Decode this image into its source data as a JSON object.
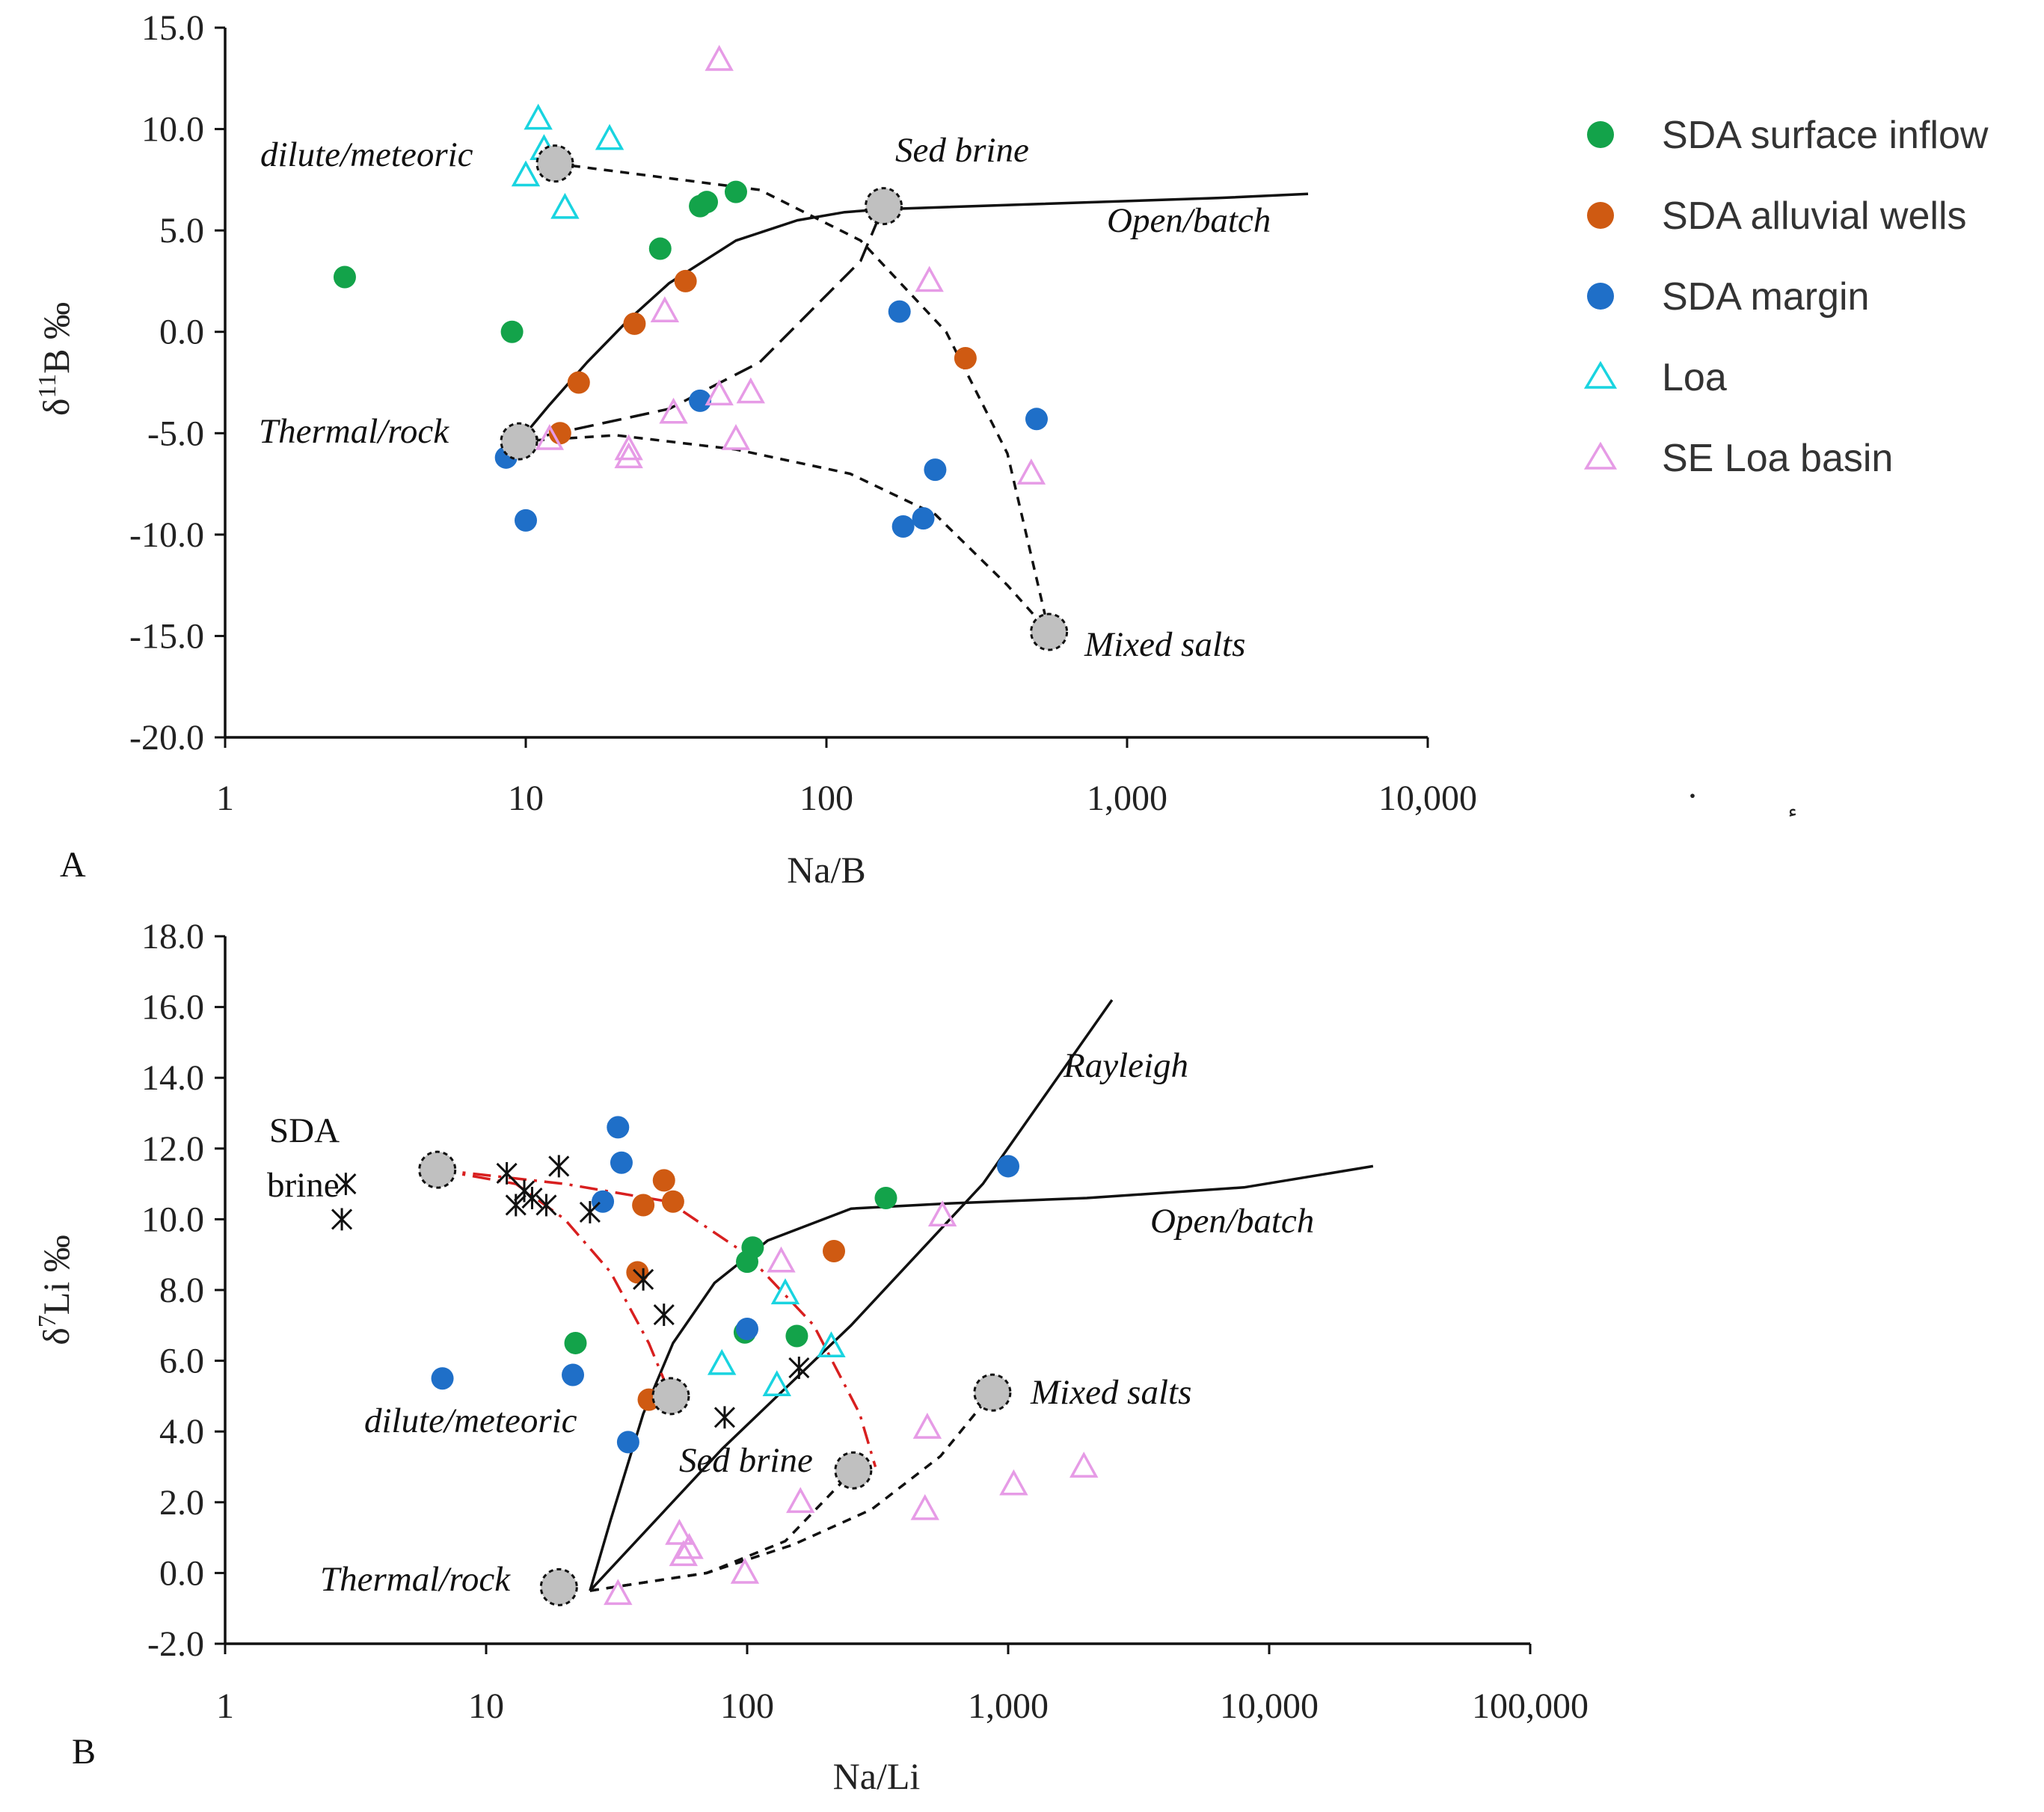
{
  "colors": {
    "surface_inflow": "#13a34a",
    "alluvial_wells": "#cf5a12",
    "margin": "#1f6fc8",
    "loa": "#19d4e0",
    "se_loa_basin": "#e69be6",
    "end_member_fill": "#c0c0c0",
    "red_dash": "#d81f1f"
  },
  "legend": {
    "items": [
      {
        "label": "SDA surface inflow",
        "series": "surface_inflow"
      },
      {
        "label": "SDA alluvial wells",
        "series": "alluvial_wells"
      },
      {
        "label": "SDA margin",
        "series": "margin"
      },
      {
        "label": "Loa",
        "series": "loa"
      },
      {
        "label": "SE  Loa basin",
        "series": "se_loa_basin"
      }
    ]
  },
  "chart_data": [
    {
      "panel": "A",
      "type": "scatter",
      "xscale": "log",
      "xlim": [
        1,
        10000
      ],
      "ylim": [
        -20,
        15
      ],
      "xticks": [
        "1",
        "10",
        "100",
        "1,000",
        "10,000"
      ],
      "yticks": [
        "-20.0",
        "-15.0",
        "-10.0",
        "-5.0",
        "0.0",
        "5.0",
        "10.0",
        "15.0"
      ],
      "xlabel": "Na/B",
      "ylabel_main": "δ",
      "ylabel_sup": "11",
      "ylabel_rest": "B ‰",
      "series": [
        {
          "key": "surface_inflow",
          "marker": "circle",
          "points": [
            [
              2.5,
              2.7
            ],
            [
              9,
              0
            ],
            [
              28,
              4.1
            ],
            [
              38,
              6.2
            ],
            [
              40,
              6.4
            ],
            [
              50,
              6.9
            ]
          ]
        },
        {
          "key": "alluvial_wells",
          "marker": "circle",
          "points": [
            [
              13,
              -5
            ],
            [
              15,
              -2.5
            ],
            [
              23,
              0.4
            ],
            [
              34,
              2.5
            ],
            [
              290,
              -1.3
            ]
          ]
        },
        {
          "key": "margin",
          "marker": "circle",
          "points": [
            [
              8.6,
              -6.2
            ],
            [
              10,
              -9.3
            ],
            [
              38,
              -3.4
            ],
            [
              175,
              1
            ],
            [
              180,
              -9.6
            ],
            [
              210,
              -9.2
            ],
            [
              230,
              -6.8
            ],
            [
              500,
              -4.3
            ]
          ]
        },
        {
          "key": "loa",
          "marker": "triangle",
          "points": [
            [
              10,
              7.7
            ],
            [
              11,
              10.5
            ],
            [
              11.5,
              9
            ],
            [
              13.5,
              6.1
            ],
            [
              19,
              9.5
            ]
          ]
        },
        {
          "key": "se_loa_basin",
          "marker": "triangle",
          "points": [
            [
              12,
              -5.3
            ],
            [
              22,
              -5.8
            ],
            [
              22,
              -6.2
            ],
            [
              29,
              1
            ],
            [
              31,
              -4
            ],
            [
              44,
              13.4
            ],
            [
              44,
              -3.1
            ],
            [
              50,
              -5.3
            ],
            [
              56,
              -3
            ],
            [
              220,
              2.5
            ],
            [
              480,
              -7
            ]
          ]
        }
      ],
      "end_members": [
        {
          "x": 12.5,
          "y": 8.3,
          "label": "dilute/meteoric"
        },
        {
          "x": 155,
          "y": 6.2,
          "label": "Sed brine"
        },
        {
          "x": 9.5,
          "y": -5.4,
          "label": "Thermal/rock"
        },
        {
          "x": 550,
          "y": -14.8,
          "label": "Mixed salts"
        }
      ],
      "curves": [
        {
          "style": "solid",
          "label": "Open/batch",
          "points": [
            [
              9.5,
              -5.4
            ],
            [
              12,
              -3.6
            ],
            [
              16,
              -1.5
            ],
            [
              22,
              0.6
            ],
            [
              30,
              2.4
            ],
            [
              50,
              4.5
            ],
            [
              80,
              5.5
            ],
            [
              115,
              5.9
            ],
            [
              155,
              6.05
            ],
            [
              500,
              6.3
            ],
            [
              2000,
              6.6
            ],
            [
              4000,
              6.8
            ]
          ]
        },
        {
          "style": "dashed-short",
          "points": [
            [
              12.5,
              8.3
            ],
            [
              60,
              7
            ],
            [
              130,
              4.5
            ],
            [
              250,
              0
            ],
            [
              400,
              -6
            ],
            [
              550,
              -14.8
            ]
          ]
        },
        {
          "style": "dashed-short",
          "points": [
            [
              9.5,
              -5.4
            ],
            [
              20,
              -5.1
            ],
            [
              50,
              -5.8
            ],
            [
              120,
              -7
            ],
            [
              230,
              -9
            ],
            [
              400,
              -12.5
            ],
            [
              550,
              -14.8
            ]
          ]
        },
        {
          "style": "dashed-long",
          "points": [
            [
              9.5,
              -5.4
            ],
            [
              30,
              -3.8
            ],
            [
              60,
              -1.5
            ],
            [
              130,
              3.5
            ],
            [
              155,
              6.2
            ]
          ]
        }
      ]
    },
    {
      "panel": "B",
      "type": "scatter",
      "xscale": "log",
      "xlim": [
        1,
        100000
      ],
      "ylim": [
        -2,
        18
      ],
      "xticks": [
        "1",
        "10",
        "100",
        "1,000",
        "10,000",
        "100,000"
      ],
      "yticks": [
        "-2.0",
        "0.0",
        "2.0",
        "4.0",
        "6.0",
        "8.0",
        "10.0",
        "12.0",
        "14.0",
        "16.0",
        "18.0"
      ],
      "xlabel": "Na/Li",
      "ylabel_main": "δ",
      "ylabel_sup": "7",
      "ylabel_rest": "Li ‰",
      "series": [
        {
          "key": "surface_inflow",
          "marker": "circle",
          "points": [
            [
              22,
              6.5
            ],
            [
              98,
              6.8
            ],
            [
              100,
              8.8
            ],
            [
              105,
              9.2
            ],
            [
              155,
              6.7
            ],
            [
              340,
              10.6
            ]
          ]
        },
        {
          "key": "alluvial_wells",
          "marker": "circle",
          "points": [
            [
              38,
              8.5
            ],
            [
              40,
              10.4
            ],
            [
              42,
              4.9
            ],
            [
              48,
              11.1
            ],
            [
              52,
              10.5
            ],
            [
              215,
              9.1
            ]
          ]
        },
        {
          "key": "margin",
          "marker": "circle",
          "points": [
            [
              6.8,
              5.5
            ],
            [
              21.5,
              5.6
            ],
            [
              28,
              10.5
            ],
            [
              32,
              12.6
            ],
            [
              33,
              11.6
            ],
            [
              35,
              3.7
            ],
            [
              100,
              6.9
            ],
            [
              1000,
              11.5
            ]
          ]
        },
        {
          "key": "loa",
          "marker": "triangle",
          "points": [
            [
              80,
              5.9
            ],
            [
              130,
              5.3
            ],
            [
              140,
              7.9
            ],
            [
              210,
              6.4
            ]
          ]
        },
        {
          "key": "se_loa_basin",
          "marker": "triangle",
          "points": [
            [
              32,
              -0.6
            ],
            [
              55,
              1.1
            ],
            [
              57,
              0.5
            ],
            [
              60,
              0.7
            ],
            [
              98,
              0
            ],
            [
              135,
              8.8
            ],
            [
              160,
              2
            ],
            [
              480,
              1.8
            ],
            [
              490,
              4.1
            ],
            [
              560,
              10.1
            ],
            [
              1050,
              2.5
            ],
            [
              1950,
              3
            ]
          ]
        }
      ],
      "sda_brine_points": [
        [
          2.8,
          10
        ],
        [
          2.9,
          11
        ],
        [
          12,
          11.3
        ],
        [
          13,
          10.4
        ],
        [
          14,
          10.8
        ],
        [
          15,
          10.6
        ],
        [
          17,
          10.4
        ],
        [
          19,
          11.5
        ],
        [
          25,
          10.2
        ],
        [
          40,
          8.3
        ],
        [
          48,
          7.3
        ],
        [
          82,
          4.4
        ],
        [
          158,
          5.8
        ]
      ],
      "end_members": [
        {
          "x": 6.5,
          "y": 11.4,
          "label": "SDA brine"
        },
        {
          "x": 51,
          "y": 5,
          "label": "dilute/meteoric"
        },
        {
          "x": 255,
          "y": 2.9,
          "label": "Sed brine"
        },
        {
          "x": 19,
          "y": -0.4,
          "label": "Thermal/rock"
        },
        {
          "x": 870,
          "y": 5.1,
          "label": "Mixed salts"
        }
      ],
      "curves": [
        {
          "style": "solid",
          "label": "Open/batch",
          "points": [
            [
              25,
              -0.5
            ],
            [
              30,
              1.5
            ],
            [
              40,
              4.5
            ],
            [
              52,
              6.5
            ],
            [
              75,
              8.2
            ],
            [
              120,
              9.4
            ],
            [
              250,
              10.3
            ],
            [
              600,
              10.45
            ],
            [
              2000,
              10.6
            ],
            [
              8000,
              10.9
            ],
            [
              25000,
              11.5
            ]
          ]
        },
        {
          "style": "solid",
          "label": "Rayleigh",
          "points": [
            [
              25,
              -0.5
            ],
            [
              80,
              3.5
            ],
            [
              250,
              7
            ],
            [
              800,
              11
            ],
            [
              2500,
              16.2
            ]
          ]
        },
        {
          "style": "dashed-short",
          "points": [
            [
              25,
              -0.5
            ],
            [
              70,
              0
            ],
            [
              150,
              0.8
            ],
            [
              300,
              1.8
            ],
            [
              550,
              3.3
            ],
            [
              870,
              5.1
            ]
          ]
        },
        {
          "style": "dashed-short",
          "points": [
            [
              25,
              -0.5
            ],
            [
              70,
              0
            ],
            [
              140,
              0.9
            ],
            [
              255,
              2.9
            ]
          ]
        },
        {
          "style": "dashdot-red",
          "points": [
            [
              6.5,
              11.4
            ],
            [
              13,
              11
            ],
            [
              20,
              10
            ],
            [
              30,
              8.5
            ],
            [
              42,
              6.5
            ],
            [
              51,
              5
            ]
          ]
        },
        {
          "style": "dashdot-red",
          "points": [
            [
              6.5,
              11.4
            ],
            [
              20,
              11
            ],
            [
              50,
              10.5
            ],
            [
              100,
              9
            ],
            [
              180,
              7
            ],
            [
              270,
              4.5
            ],
            [
              310,
              3
            ]
          ]
        }
      ],
      "annotations": [
        {
          "label": "Rayleigh"
        }
      ]
    }
  ],
  "text": {
    "a_dilute": "dilute/meteoric",
    "a_sed": "Sed brine",
    "a_open": "Open/batch",
    "a_thermal": "Thermal/rock",
    "a_mixed": "Mixed salts",
    "b_sda_line1": "SDA",
    "b_sda_line2": "brine",
    "b_rayleigh": "Rayleigh",
    "b_open": "Open/batch",
    "b_dilute": "dilute/meteoric",
    "b_sed": "Sed brine",
    "b_thermal": "Thermal/rock",
    "b_mixed": "Mixed salts",
    "panel_a": "A",
    "panel_b": "B",
    "stray_a": "·",
    "stray_b": "ٕ"
  }
}
